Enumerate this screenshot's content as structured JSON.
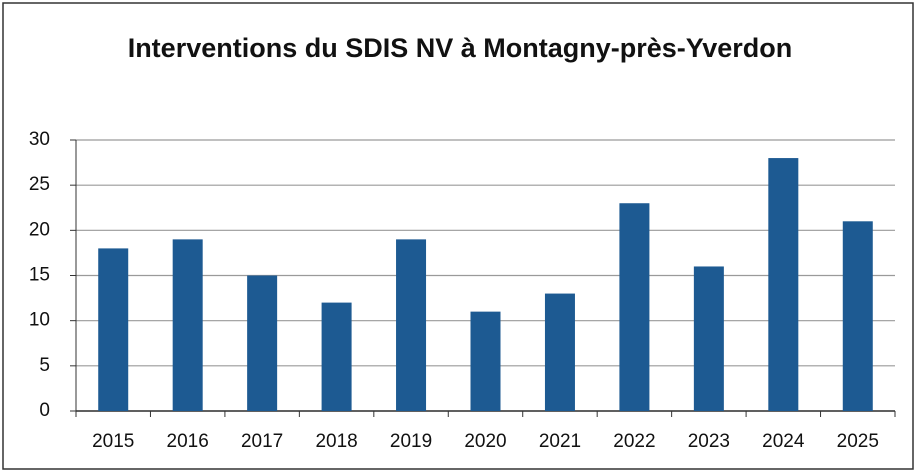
{
  "chart_data": {
    "type": "bar",
    "title": "Interventions du SDIS NV à Montagny-près-Yverdon",
    "categories": [
      "2015",
      "2016",
      "2017",
      "2018",
      "2019",
      "2020",
      "2021",
      "2022",
      "2023",
      "2024",
      "2025"
    ],
    "values": [
      18,
      19,
      15,
      12,
      19,
      11,
      13,
      23,
      16,
      28,
      21
    ],
    "color": "#1d5a92",
    "ylim": [
      0,
      30
    ],
    "yticks": [
      0,
      5,
      10,
      15,
      20,
      25,
      30
    ],
    "grid": true
  }
}
